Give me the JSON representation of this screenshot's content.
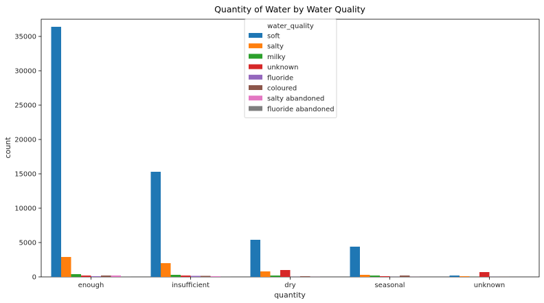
{
  "chart_data": {
    "type": "bar",
    "title": "Quantity of Water by Water Quality",
    "xlabel": "quantity",
    "ylabel": "count",
    "ylim": [
      0,
      37500
    ],
    "yticks": [
      0,
      5000,
      10000,
      15000,
      20000,
      25000,
      30000,
      35000
    ],
    "categories": [
      "enough",
      "insufficient",
      "dry",
      "seasonal",
      "unknown"
    ],
    "legend": {
      "title": "water_quality",
      "placement": "upper-center"
    },
    "series": [
      {
        "name": "soft",
        "color": "#1f77b4",
        "values": [
          36400,
          15300,
          5400,
          4400,
          200
        ]
      },
      {
        "name": "salty",
        "color": "#ff7f0e",
        "values": [
          2900,
          2000,
          800,
          300,
          100
        ]
      },
      {
        "name": "milky",
        "color": "#2ca02c",
        "values": [
          400,
          300,
          200,
          200,
          10
        ]
      },
      {
        "name": "unknown",
        "color": "#d62728",
        "values": [
          200,
          200,
          1000,
          100,
          700
        ]
      },
      {
        "name": "fluoride",
        "color": "#9467bd",
        "values": [
          100,
          150,
          10,
          10,
          10
        ]
      },
      {
        "name": "coloured",
        "color": "#8c564b",
        "values": [
          200,
          150,
          100,
          200,
          10
        ]
      },
      {
        "name": "salty abandoned",
        "color": "#e377c2",
        "values": [
          200,
          100,
          10,
          10,
          0
        ]
      },
      {
        "name": "fluoride abandoned",
        "color": "#7f7f7f",
        "values": [
          10,
          10,
          0,
          0,
          0
        ]
      }
    ]
  }
}
